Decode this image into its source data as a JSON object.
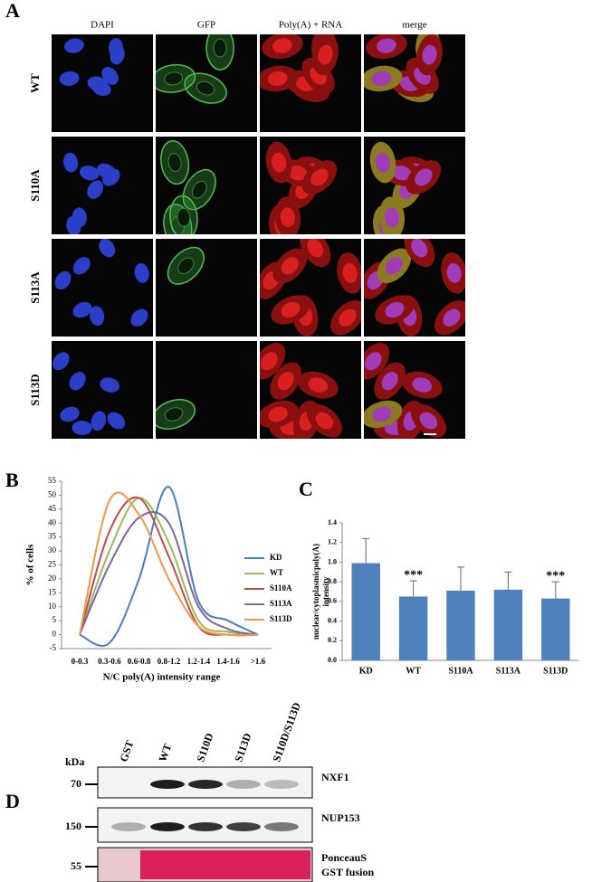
{
  "panel_a": {
    "label": "A",
    "columns": [
      "DAPI",
      "GFP",
      "Poly(A) + RNA",
      "merge"
    ],
    "rows": [
      "WT",
      "S110A",
      "S113A",
      "S113D"
    ]
  },
  "chart_data": [
    {
      "type": "line",
      "panel_label": "B",
      "xlabel": "N/C poly(A) intensity range",
      "ylabel": "% of cells",
      "categories": [
        "0-0.3",
        "0.3-0.6",
        "0.6-0.8",
        "0.8-1.2",
        "1.2-1.4",
        "1.4-1.6",
        ">1.6"
      ],
      "ylim": [
        -5,
        55
      ],
      "yticks": [
        -5,
        0,
        5,
        10,
        15,
        20,
        25,
        30,
        35,
        40,
        45,
        50,
        55
      ],
      "legend": "right",
      "series": [
        {
          "name": "KD",
          "color": "#4a7ebb",
          "values": [
            0,
            -3,
            20,
            53,
            12,
            5,
            0
          ]
        },
        {
          "name": "WT",
          "color": "#9bbb59",
          "values": [
            0,
            30,
            49,
            33,
            5,
            1,
            0
          ]
        },
        {
          "name": "S110A",
          "color": "#be4b48",
          "values": [
            0,
            37,
            49,
            28,
            3,
            0,
            0
          ]
        },
        {
          "name": "S113A",
          "color": "#8064a2",
          "values": [
            0,
            25,
            42,
            40,
            10,
            2,
            0
          ]
        },
        {
          "name": "S113D",
          "color": "#f79646",
          "values": [
            0,
            48,
            43,
            20,
            3,
            0,
            0
          ]
        }
      ]
    },
    {
      "type": "bar",
      "panel_label": "C",
      "ylabel": [
        "nuclear/cytoplasmicpoly(A)",
        "intensity"
      ],
      "categories": [
        "KD",
        "WT",
        "S110A",
        "S113A",
        "S113D"
      ],
      "values": [
        0.99,
        0.65,
        0.71,
        0.72,
        0.63
      ],
      "errors": [
        0.25,
        0.16,
        0.24,
        0.18,
        0.17
      ],
      "color": "#4f81bd",
      "ylim": [
        0,
        1.4
      ],
      "yticks": [
        {
          "value": 0,
          "label": "0.0"
        },
        0.2,
        0.4,
        0.6,
        0.8,
        {
          "value": 1,
          "label": "1.0"
        },
        1.2,
        1.4
      ],
      "annotations": [
        {
          "category": "WT",
          "text": "***"
        },
        {
          "category": "S113D",
          "text": "***"
        }
      ]
    }
  ],
  "panel_d": {
    "label": "D",
    "unit": "kDa",
    "lanes": [
      "GST",
      "WT",
      "S110D",
      "S113D",
      "S110D/S113D"
    ],
    "blots": [
      {
        "marker": 70,
        "name": [
          "NXF1"
        ]
      },
      {
        "marker": 150,
        "name": [
          "NUP153"
        ]
      },
      {
        "marker": 55,
        "name": [
          "PonceauS",
          "GST fusion"
        ]
      }
    ]
  }
}
